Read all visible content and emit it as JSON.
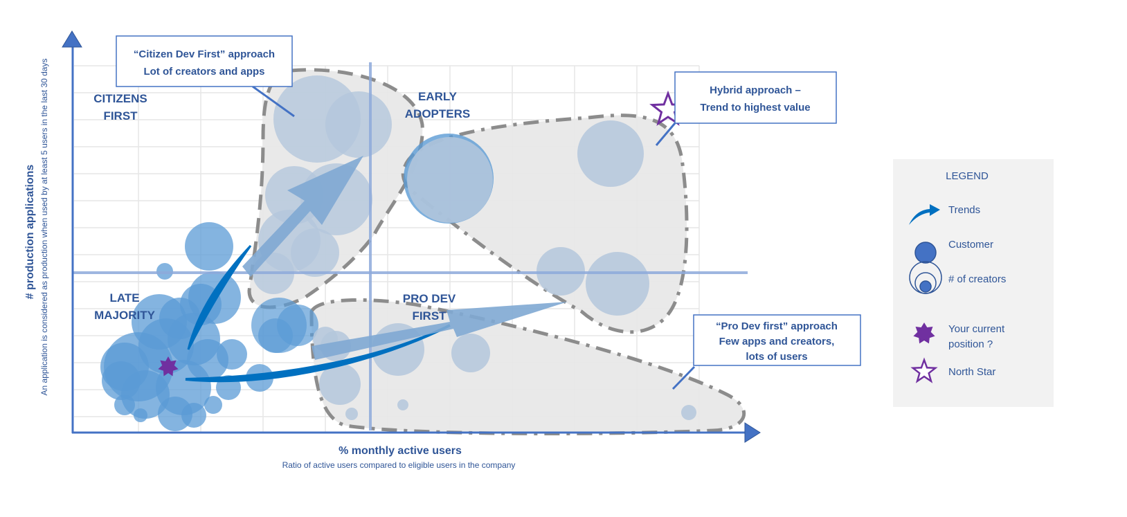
{
  "axes": {
    "y_title": "# production applications",
    "y_subtitle": "An application is considered as production when used by at least 5 users in the last 30 days",
    "x_title": "% monthly active users",
    "x_subtitle": "Ratio of active users compared to eligible users in the company"
  },
  "quadrants": {
    "citizens_first": [
      "CITIZENS",
      "FIRST"
    ],
    "early_adopters": [
      "EARLY",
      "ADOPTERS"
    ],
    "late_majority": [
      "LATE",
      "MAJORITY"
    ],
    "pro_dev_first": [
      "PRO DEV",
      "FIRST"
    ]
  },
  "callouts": {
    "citizen": [
      "“Citizen Dev First” approach",
      "Lot of creators and apps"
    ],
    "hybrid": [
      "Hybrid approach –",
      "Trend to highest value"
    ],
    "prodev": [
      "“Pro Dev first” approach",
      "Few apps and creators,",
      "lots of users"
    ]
  },
  "legend": {
    "title": "LEGEND",
    "items": [
      {
        "icon": "trend-arrow-icon",
        "label": "Trends"
      },
      {
        "icon": "customer-circle-icon",
        "label": "Customer"
      },
      {
        "icon": "nested-circles-icon",
        "label": "# of creators"
      },
      {
        "icon": "purple-burst-star-icon",
        "label": [
          "Your current",
          "position ?"
        ]
      },
      {
        "icon": "outline-star-icon",
        "label": "North Star"
      }
    ]
  },
  "colors": {
    "axis": "#4472C4",
    "text": "#2F5597",
    "customer_bubble": "#5B9BD5",
    "zone_bubble": "#B4C7DC",
    "trend_arrow": "#0070C0",
    "star": "#7030A0",
    "zone_fill": "#E7E7E7",
    "zone_outline": "#8C8C8C",
    "legend_bg": "#F2F2F2"
  }
}
